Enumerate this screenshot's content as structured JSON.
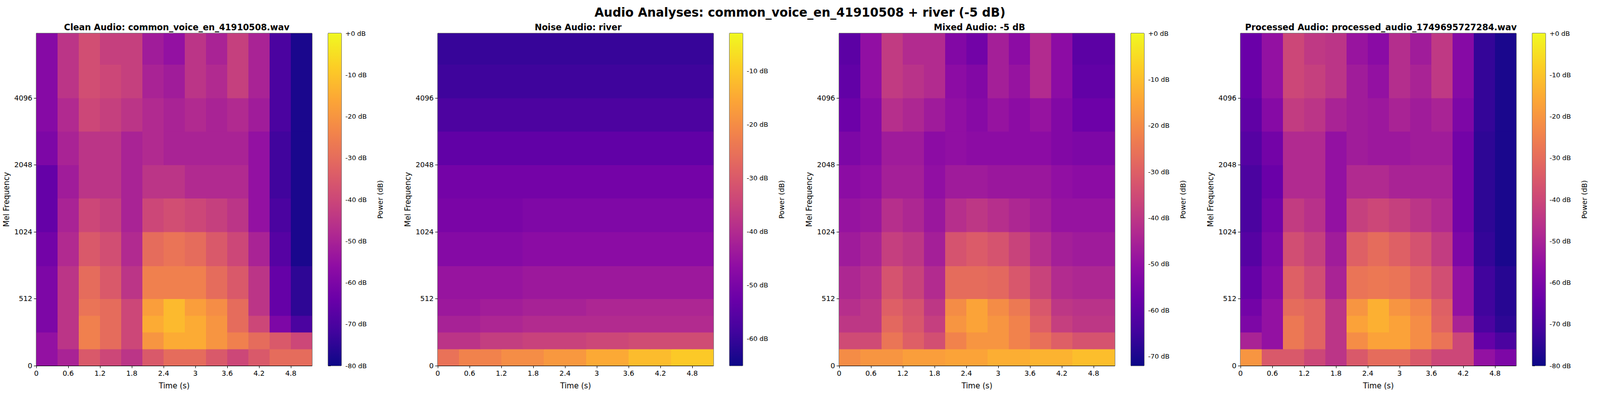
{
  "title": "Audio Analyses: common_voice_en_41910508 + river (-5 dB)",
  "chart_data": [
    {
      "type": "heatmap",
      "title": "Clean Audio: common_voice_en_41910508.wav",
      "xlabel": "Time (s)",
      "ylabel": "Mel Frequency",
      "time_bins": [
        0,
        0.4,
        0.8,
        1.2,
        1.6,
        2,
        2.4,
        2.8,
        3.2,
        3.6,
        4,
        4.4,
        4.8,
        5.2
      ],
      "freq_bins": [
        0,
        128,
        256,
        384,
        512,
        720,
        1024,
        1450,
        2048,
        2900,
        4096,
        5800,
        8000
      ],
      "values": [
        [
          -55,
          -50,
          -35,
          -40,
          -45,
          -35,
          -30,
          -30,
          -35,
          -40,
          -35,
          -30,
          -30
        ],
        [
          -55,
          -45,
          -25,
          -30,
          -40,
          -20,
          -15,
          -15,
          -20,
          -25,
          -30,
          -35,
          -40
        ],
        [
          -60,
          -45,
          -25,
          -30,
          -40,
          -15,
          -12,
          -15,
          -20,
          -30,
          -40,
          -60,
          -70
        ],
        [
          -60,
          -45,
          -28,
          -30,
          -40,
          -18,
          -12,
          -18,
          -22,
          -30,
          -45,
          -65,
          -75
        ],
        [
          -60,
          -45,
          -30,
          -35,
          -45,
          -25,
          -25,
          -25,
          -30,
          -35,
          -45,
          -65,
          -75
        ],
        [
          -62,
          -48,
          -35,
          -38,
          -48,
          -30,
          -28,
          -30,
          -35,
          -40,
          -50,
          -68,
          -78
        ],
        [
          -65,
          -50,
          -40,
          -42,
          -50,
          -40,
          -38,
          -40,
          -42,
          -45,
          -55,
          -70,
          -78
        ],
        [
          -65,
          -52,
          -45,
          -45,
          -50,
          -45,
          -45,
          -48,
          -48,
          -48,
          -55,
          -72,
          -78
        ],
        [
          -60,
          -50,
          -45,
          -45,
          -50,
          -48,
          -50,
          -50,
          -50,
          -50,
          -55,
          -72,
          -78
        ],
        [
          -58,
          -48,
          -40,
          -42,
          -45,
          -48,
          -50,
          -48,
          -50,
          -48,
          -52,
          -70,
          -78
        ],
        [
          -58,
          -45,
          -38,
          -40,
          -42,
          -50,
          -52,
          -45,
          -48,
          -42,
          -50,
          -70,
          -78
        ],
        [
          -58,
          -45,
          -38,
          -42,
          -42,
          -52,
          -55,
          -45,
          -50,
          -42,
          -50,
          -70,
          -78
        ]
      ],
      "xlim": [
        0,
        5.2
      ],
      "ylim": [
        0,
        8000
      ],
      "xticks": [
        0,
        0.6,
        1.2,
        1.8,
        2.4,
        3,
        3.6,
        4.2,
        4.8
      ],
      "yticks": [
        0,
        512,
        1024,
        2048,
        4096
      ],
      "colorbar": {
        "label": "Power (dB)",
        "range": [
          -80,
          0
        ],
        "ticks": [
          {
            "value": 0,
            "label": "+0 dB"
          },
          {
            "value": -10,
            "label": "-10 dB"
          },
          {
            "value": -20,
            "label": "-20 dB"
          },
          {
            "value": -30,
            "label": "-30 dB"
          },
          {
            "value": -40,
            "label": "-40 dB"
          },
          {
            "value": -50,
            "label": "-50 dB"
          },
          {
            "value": -60,
            "label": "-60 dB"
          },
          {
            "value": -70,
            "label": "-70 dB"
          },
          {
            "value": -80,
            "label": "-80 dB"
          }
        ]
      }
    },
    {
      "type": "heatmap",
      "title": "Noise Audio: river",
      "xlabel": "Time (s)",
      "ylabel": "Mel Frequency",
      "time_bins": [
        0,
        0.4,
        0.8,
        1.2,
        1.6,
        2,
        2.4,
        2.8,
        3.2,
        3.6,
        4,
        4.4,
        4.8,
        5.2
      ],
      "freq_bins": [
        0,
        128,
        256,
        384,
        512,
        720,
        1024,
        1450,
        2048,
        2900,
        4096,
        5800,
        8000
      ],
      "values": [
        [
          -25,
          -22,
          -22,
          -20,
          -20,
          -18,
          -18,
          -15,
          -15,
          -12,
          -12,
          -10,
          -10
        ],
        [
          -38,
          -38,
          -36,
          -36,
          -35,
          -35,
          -35,
          -34,
          -34,
          -33,
          -33,
          -33,
          -33
        ],
        [
          -42,
          -42,
          -41,
          -41,
          -40,
          -40,
          -40,
          -40,
          -40,
          -40,
          -40,
          -40,
          -40
        ],
        [
          -44,
          -44,
          -43,
          -43,
          -42,
          -42,
          -42,
          -41,
          -41,
          -41,
          -41,
          -41,
          -41
        ],
        [
          -45,
          -45,
          -45,
          -45,
          -44,
          -44,
          -44,
          -44,
          -44,
          -44,
          -44,
          -44,
          -44
        ],
        [
          -48,
          -48,
          -48,
          -48,
          -47,
          -47,
          -47,
          -47,
          -47,
          -47,
          -47,
          -47,
          -47
        ],
        [
          -50,
          -50,
          -50,
          -50,
          -49,
          -49,
          -49,
          -49,
          -49,
          -49,
          -49,
          -49,
          -49
        ],
        [
          -51,
          -51,
          -51,
          -51,
          -51,
          -51,
          -51,
          -51,
          -51,
          -51,
          -51,
          -51,
          -51
        ],
        [
          -54,
          -54,
          -54,
          -54,
          -54,
          -54,
          -54,
          -54,
          -54,
          -54,
          -54,
          -54,
          -54
        ],
        [
          -57,
          -57,
          -57,
          -57,
          -57,
          -57,
          -57,
          -57,
          -57,
          -57,
          -57,
          -57,
          -57
        ],
        [
          -59,
          -59,
          -59,
          -59,
          -59,
          -59,
          -59,
          -59,
          -59,
          -59,
          -59,
          -59,
          -59
        ],
        [
          -60,
          -60,
          -60,
          -60,
          -60,
          -60,
          -60,
          -60,
          -60,
          -60,
          -60,
          -60,
          -60
        ]
      ],
      "xlim": [
        0,
        5.2
      ],
      "ylim": [
        0,
        8000
      ],
      "xticks": [
        0,
        0.6,
        1.2,
        1.8,
        2.4,
        3,
        3.6,
        4.2,
        4.8
      ],
      "yticks": [
        0,
        512,
        1024,
        2048,
        4096
      ],
      "colorbar": {
        "label": "Power (dB)",
        "range": [
          -65,
          -3
        ],
        "ticks": [
          {
            "value": -10,
            "label": "-10 dB"
          },
          {
            "value": -20,
            "label": "-20 dB"
          },
          {
            "value": -30,
            "label": "-30 dB"
          },
          {
            "value": -40,
            "label": "-40 dB"
          },
          {
            "value": -50,
            "label": "-50 dB"
          },
          {
            "value": -60,
            "label": "-60 dB"
          }
        ]
      }
    },
    {
      "type": "heatmap",
      "title": "Mixed Audio: -5 dB",
      "xlabel": "Time (s)",
      "ylabel": "Mel Frequency",
      "time_bins": [
        0,
        0.4,
        0.8,
        1.2,
        1.6,
        2,
        2.4,
        2.8,
        3.2,
        3.6,
        4,
        4.4,
        4.8,
        5.2
      ],
      "freq_bins": [
        0,
        128,
        256,
        384,
        512,
        720,
        1024,
        1450,
        2048,
        2900,
        4096,
        5800,
        8000
      ],
      "values": [
        [
          -20,
          -18,
          -18,
          -16,
          -16,
          -15,
          -15,
          -13,
          -13,
          -12,
          -12,
          -10,
          -10
        ],
        [
          -35,
          -35,
          -25,
          -30,
          -34,
          -22,
          -18,
          -18,
          -22,
          -26,
          -30,
          -33,
          -33
        ],
        [
          -40,
          -40,
          -28,
          -32,
          -38,
          -18,
          -15,
          -18,
          -22,
          -30,
          -38,
          -40,
          -40
        ],
        [
          -42,
          -40,
          -30,
          -33,
          -40,
          -20,
          -15,
          -20,
          -24,
          -32,
          -40,
          -41,
          -41
        ],
        [
          -44,
          -42,
          -33,
          -37,
          -43,
          -27,
          -27,
          -28,
          -32,
          -37,
          -43,
          -44,
          -44
        ],
        [
          -47,
          -45,
          -38,
          -40,
          -46,
          -33,
          -31,
          -33,
          -37,
          -42,
          -46,
          -47,
          -47
        ],
        [
          -49,
          -48,
          -42,
          -44,
          -48,
          -42,
          -40,
          -42,
          -44,
          -46,
          -49,
          -49,
          -49
        ],
        [
          -51,
          -50,
          -46,
          -46,
          -50,
          -47,
          -47,
          -48,
          -48,
          -48,
          -50,
          -51,
          -51
        ],
        [
          -54,
          -52,
          -47,
          -47,
          -51,
          -50,
          -51,
          -51,
          -51,
          -51,
          -53,
          -54,
          -54
        ],
        [
          -57,
          -52,
          -42,
          -44,
          -47,
          -50,
          -52,
          -49,
          -51,
          -49,
          -53,
          -57,
          -57
        ],
        [
          -59,
          -50,
          -39,
          -41,
          -43,
          -51,
          -53,
          -46,
          -49,
          -43,
          -51,
          -59,
          -59
        ],
        [
          -60,
          -50,
          -39,
          -43,
          -43,
          -53,
          -56,
          -46,
          -51,
          -43,
          -51,
          -60,
          -60
        ]
      ],
      "xlim": [
        0,
        5.2
      ],
      "ylim": [
        0,
        8000
      ],
      "xticks": [
        0,
        0.6,
        1.2,
        1.8,
        2.4,
        3,
        3.6,
        4.2,
        4.8
      ],
      "yticks": [
        0,
        512,
        1024,
        2048,
        4096
      ],
      "colorbar": {
        "label": "Power (dB)",
        "range": [
          -72,
          0
        ],
        "ticks": [
          {
            "value": 0,
            "label": "+0 dB"
          },
          {
            "value": -10,
            "label": "-10 dB"
          },
          {
            "value": -20,
            "label": "-20 dB"
          },
          {
            "value": -30,
            "label": "-30 dB"
          },
          {
            "value": -40,
            "label": "-40 dB"
          },
          {
            "value": -50,
            "label": "-50 dB"
          },
          {
            "value": -60,
            "label": "-60 dB"
          },
          {
            "value": -70,
            "label": "-70 dB"
          }
        ]
      }
    },
    {
      "type": "heatmap",
      "title": "Processed Audio: processed_audio_1749695727284.wav",
      "xlabel": "Time (s)",
      "ylabel": "Mel Frequency",
      "time_bins": [
        0,
        0.4,
        0.8,
        1.2,
        1.6,
        2,
        2.4,
        2.8,
        3.2,
        3.6,
        4,
        4.4,
        4.8,
        5.2
      ],
      "freq_bins": [
        0,
        128,
        256,
        384,
        512,
        720,
        1024,
        1450,
        2048,
        2900,
        4096,
        5800,
        8000
      ],
      "values": [
        [
          -20,
          -35,
          -35,
          -40,
          -45,
          -35,
          -30,
          -30,
          -35,
          -40,
          -40,
          -55,
          -60
        ],
        [
          -50,
          -55,
          -27,
          -32,
          -45,
          -22,
          -17,
          -17,
          -22,
          -28,
          -40,
          -65,
          -70
        ],
        [
          -60,
          -55,
          -27,
          -32,
          -45,
          -17,
          -14,
          -17,
          -22,
          -32,
          -50,
          -70,
          -75
        ],
        [
          -62,
          -55,
          -30,
          -32,
          -45,
          -20,
          -14,
          -20,
          -24,
          -33,
          -55,
          -72,
          -76
        ],
        [
          -65,
          -58,
          -33,
          -38,
          -50,
          -28,
          -27,
          -28,
          -32,
          -38,
          -55,
          -72,
          -76
        ],
        [
          -68,
          -60,
          -38,
          -42,
          -52,
          -33,
          -30,
          -33,
          -37,
          -43,
          -60,
          -74,
          -78
        ],
        [
          -70,
          -62,
          -43,
          -46,
          -55,
          -42,
          -40,
          -42,
          -45,
          -48,
          -62,
          -75,
          -78
        ],
        [
          -70,
          -64,
          -48,
          -48,
          -55,
          -48,
          -48,
          -50,
          -50,
          -50,
          -62,
          -75,
          -78
        ],
        [
          -68,
          -62,
          -48,
          -48,
          -55,
          -52,
          -53,
          -53,
          -52,
          -52,
          -62,
          -75,
          -78
        ],
        [
          -66,
          -58,
          -43,
          -45,
          -50,
          -52,
          -53,
          -50,
          -52,
          -50,
          -60,
          -74,
          -78
        ],
        [
          -64,
          -55,
          -40,
          -42,
          -45,
          -52,
          -55,
          -47,
          -50,
          -44,
          -58,
          -74,
          -78
        ],
        [
          -64,
          -55,
          -40,
          -44,
          -45,
          -54,
          -57,
          -47,
          -52,
          -44,
          -58,
          -74,
          -78
        ]
      ],
      "xlim": [
        0,
        5.2
      ],
      "ylim": [
        0,
        8000
      ],
      "xticks": [
        0,
        0.6,
        1.2,
        1.8,
        2.4,
        3,
        3.6,
        4.2,
        4.8
      ],
      "yticks": [
        0,
        512,
        1024,
        2048,
        4096
      ],
      "colorbar": {
        "label": "Power (dB)",
        "range": [
          -80,
          0
        ],
        "ticks": [
          {
            "value": 0,
            "label": "+0 dB"
          },
          {
            "value": -10,
            "label": "-10 dB"
          },
          {
            "value": -20,
            "label": "-20 dB"
          },
          {
            "value": -30,
            "label": "-30 dB"
          },
          {
            "value": -40,
            "label": "-40 dB"
          },
          {
            "value": -50,
            "label": "-50 dB"
          },
          {
            "value": -60,
            "label": "-60 dB"
          },
          {
            "value": -70,
            "label": "-70 dB"
          },
          {
            "value": -80,
            "label": "-80 dB"
          }
        ]
      }
    }
  ]
}
